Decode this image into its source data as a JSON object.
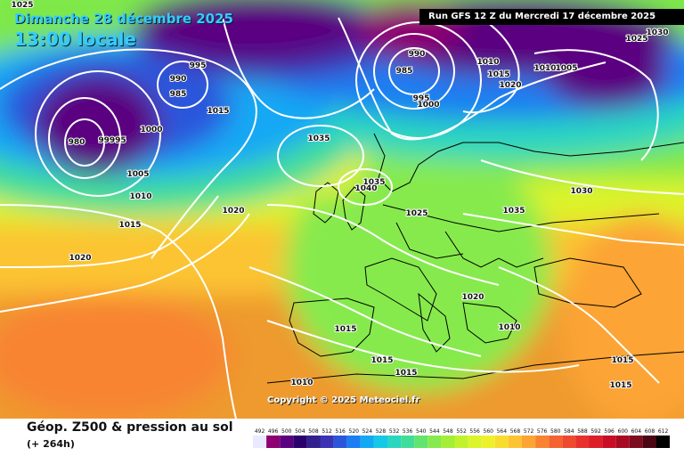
{
  "header": {
    "date": "Dimanche 28 décembre 2025",
    "time": "13:00 locale",
    "run": "Run GFS 12 Z du Mercredi 17 décembre 2025"
  },
  "copyright": "Copyright © 2025 Meteociel.fr",
  "footer": {
    "title": "Géop. Z500 & pression au sol",
    "step": "(+ 264h)"
  },
  "scale": {
    "values": [
      "492",
      "496",
      "500",
      "504",
      "508",
      "512",
      "516",
      "520",
      "524",
      "528",
      "532",
      "536",
      "540",
      "544",
      "548",
      "552",
      "556",
      "560",
      "564",
      "568",
      "572",
      "576",
      "580",
      "584",
      "588",
      "592",
      "596",
      "600",
      "604",
      "608",
      "612"
    ],
    "colors": [
      "#e9e9ff",
      "#8e0071",
      "#5a0080",
      "#2a006c",
      "#32208f",
      "#3c32b4",
      "#2a56dc",
      "#1a7ef2",
      "#14a8f4",
      "#16c8e8",
      "#2ad6c0",
      "#40dd9a",
      "#62e46e",
      "#86ea4e",
      "#a4ee38",
      "#c2f22e",
      "#dcf42a",
      "#eef02c",
      "#f8dc2e",
      "#fcc432",
      "#fca434",
      "#f88432",
      "#f46430",
      "#ee4a2e",
      "#e8302c",
      "#dc1e2a",
      "#c80e26",
      "#a80a22",
      "#7c0c1e",
      "#4a0612",
      "#000000"
    ]
  },
  "pressure_labels": [
    "1025",
    "1020",
    "995",
    "990",
    "985",
    "1015",
    "980",
    "99995",
    "1000",
    "1005",
    "1010",
    "1015",
    "1020",
    "990",
    "985",
    "995",
    "1000",
    "1010",
    "1015",
    "1020",
    "1010",
    "1005",
    "1030",
    "1025",
    "1035",
    "1040",
    "1035",
    "1025",
    "1035",
    "1030",
    "1020",
    "1010",
    "1015",
    "1015",
    "1010",
    "1015",
    "1015",
    "1015"
  ],
  "map": {
    "colors": {
      "ocean_background": "#1a7ef2",
      "contour": "#ffffff",
      "coast": "#000000"
    }
  }
}
